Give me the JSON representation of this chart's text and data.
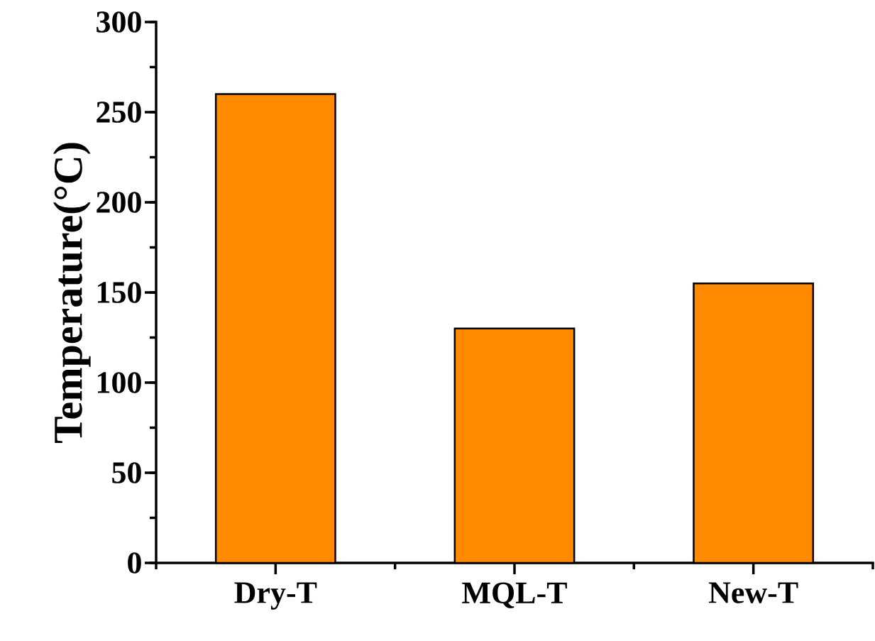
{
  "chart_data": {
    "type": "bar",
    "ylabel": "Temperature(°C)",
    "categories": [
      "Dry-T",
      "MQL-T",
      "New-T"
    ],
    "values": [
      260,
      130,
      155
    ],
    "color": "#ff8a00",
    "ylim": [
      0,
      300
    ],
    "yticks": [
      0,
      50,
      100,
      150,
      200,
      250,
      300
    ],
    "grid": false
  }
}
